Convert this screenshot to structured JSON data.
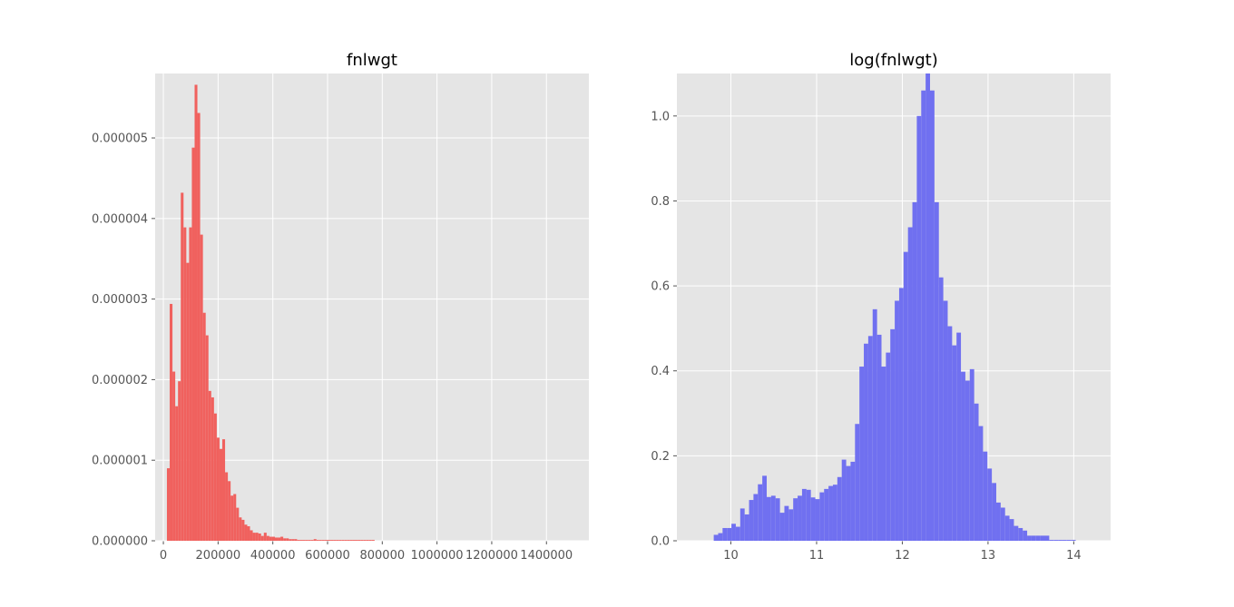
{
  "chart_data": [
    {
      "type": "bar",
      "title": "fnlwgt",
      "xlabel": "",
      "ylabel": "",
      "xlim": [
        -30000,
        1555000
      ],
      "ylim": [
        0,
        5.8e-06
      ],
      "grid": true,
      "color": "#f0615e",
      "bin_width": 10120,
      "x_ticks": [
        0,
        200000,
        400000,
        600000,
        800000,
        1000000,
        1200000,
        1400000
      ],
      "x_tick_labels": [
        "0",
        "200000",
        "400000",
        "600000",
        "800000",
        "1000000",
        "1200000",
        "1400000"
      ],
      "y_ticks": [
        0,
        1e-06,
        2e-06,
        3e-06,
        4e-06,
        5e-06
      ],
      "y_tick_labels": [
        "0.000000",
        "0.000001",
        "0.000002",
        "0.000003",
        "0.000004",
        "0.000005"
      ],
      "bin_starts": [
        13000,
        23120,
        33240,
        43360,
        53480,
        63600,
        73720,
        83840,
        93960,
        104080,
        114200,
        124320,
        134440,
        144560,
        154680,
        164800,
        174920,
        185040,
        195160,
        205280,
        215400,
        225520,
        235640,
        245760,
        255880,
        266000,
        276120,
        286240,
        296360,
        306480,
        316600,
        326720,
        336840,
        346960,
        357080,
        367200,
        377320,
        387440,
        397560,
        407680,
        417800,
        427920,
        438040,
        448160,
        458280,
        468400,
        478520,
        488640,
        498760,
        508880,
        519000,
        529120,
        539240,
        549360,
        559480,
        569600,
        579720,
        589840,
        599960,
        610080,
        620200,
        630320,
        640440,
        650560,
        660680,
        670800,
        680920,
        691040,
        701160,
        711280,
        721400,
        731520,
        741640,
        751760,
        761880
      ],
      "values": [
        9e-07,
        2.94e-06,
        2.1e-06,
        1.67e-06,
        1.98e-06,
        4.32e-06,
        3.89e-06,
        3.45e-06,
        3.89e-06,
        4.88e-06,
        5.66e-06,
        5.31e-06,
        3.8e-06,
        2.83e-06,
        2.55e-06,
        1.86e-06,
        1.78e-06,
        1.58e-06,
        1.28e-06,
        1.14e-06,
        1.26e-06,
        8.5e-07,
        7.4e-07,
        5.6e-07,
        5.8e-07,
        4.1e-07,
        2.9e-07,
        2.6e-07,
        2e-07,
        1.8e-07,
        1.3e-07,
        1e-07,
        1e-07,
        9e-08,
        6e-08,
        1e-07,
        6e-08,
        5e-08,
        5e-08,
        4e-08,
        4e-08,
        5e-08,
        3e-08,
        3e-08,
        2e-08,
        2e-08,
        2e-08,
        1e-08,
        1e-08,
        1e-08,
        1e-08,
        1e-08,
        1e-08,
        2e-08,
        1e-08,
        1e-08,
        1e-08,
        1e-08,
        1e-08,
        1e-08,
        1e-08,
        1e-08,
        1e-08,
        1e-08,
        1e-08,
        1e-08,
        1e-08,
        1e-08,
        1e-08,
        1e-08,
        1e-08,
        1e-08,
        1e-08,
        1e-08,
        1e-08
      ]
    },
    {
      "type": "bar",
      "title": "log(fnlwgt)",
      "xlabel": "",
      "ylabel": "",
      "xlim": [
        9.37,
        14.43
      ],
      "ylim": [
        0,
        1.1
      ],
      "grid": true,
      "color": "#7070f0",
      "bin_width": 0.0515,
      "x_ticks": [
        10,
        11,
        12,
        13,
        14
      ],
      "x_tick_labels": [
        "10",
        "11",
        "12",
        "13",
        "14"
      ],
      "y_ticks": [
        0,
        0.2,
        0.4,
        0.6,
        0.8,
        1.0
      ],
      "y_tick_labels": [
        "0.0",
        "0.2",
        "0.4",
        "0.6",
        "0.8",
        "1.0"
      ],
      "bin_starts": [
        9.8,
        9.8515,
        9.903,
        9.9545,
        10.006,
        10.0575,
        10.109,
        10.1605,
        10.212,
        10.2635,
        10.315,
        10.3665,
        10.418,
        10.4695,
        10.521,
        10.5725,
        10.624,
        10.6755,
        10.727,
        10.7785,
        10.83,
        10.8815,
        10.933,
        10.9845,
        11.036,
        11.0875,
        11.139,
        11.1905,
        11.242,
        11.2935,
        11.345,
        11.3965,
        11.448,
        11.4995,
        11.551,
        11.6025,
        11.654,
        11.7055,
        11.757,
        11.8085,
        11.86,
        11.9115,
        11.963,
        12.0145,
        12.066,
        12.1175,
        12.169,
        12.2205,
        12.272,
        12.3235,
        12.375,
        12.4265,
        12.478,
        12.5295,
        12.581,
        12.6325,
        12.684,
        12.7355,
        12.787,
        12.8385,
        12.89,
        12.9415,
        12.993,
        13.0445,
        13.096,
        13.1475,
        13.199,
        13.2505,
        13.302,
        13.3535,
        13.405,
        13.4565,
        13.508,
        13.5595,
        13.611,
        13.6625,
        13.714,
        13.7655,
        13.817,
        13.8685,
        13.92,
        13.9715
      ],
      "values": [
        0.014,
        0.018,
        0.03,
        0.03,
        0.04,
        0.033,
        0.076,
        0.062,
        0.096,
        0.11,
        0.133,
        0.153,
        0.103,
        0.106,
        0.1,
        0.066,
        0.082,
        0.074,
        0.1,
        0.106,
        0.122,
        0.12,
        0.102,
        0.098,
        0.114,
        0.122,
        0.129,
        0.132,
        0.15,
        0.191,
        0.176,
        0.186,
        0.275,
        0.41,
        0.464,
        0.482,
        0.545,
        0.485,
        0.41,
        0.443,
        0.498,
        0.565,
        0.595,
        0.68,
        0.738,
        0.797,
        1.0,
        1.06,
        1.1,
        1.06,
        0.797,
        0.62,
        0.565,
        0.505,
        0.46,
        0.49,
        0.398,
        0.377,
        0.404,
        0.323,
        0.27,
        0.21,
        0.17,
        0.136,
        0.09,
        0.078,
        0.059,
        0.051,
        0.035,
        0.03,
        0.024,
        0.012,
        0.012,
        0.012,
        0.012,
        0.012,
        0.002,
        0.002,
        0.002,
        0.002,
        0.002,
        0.002
      ]
    }
  ]
}
